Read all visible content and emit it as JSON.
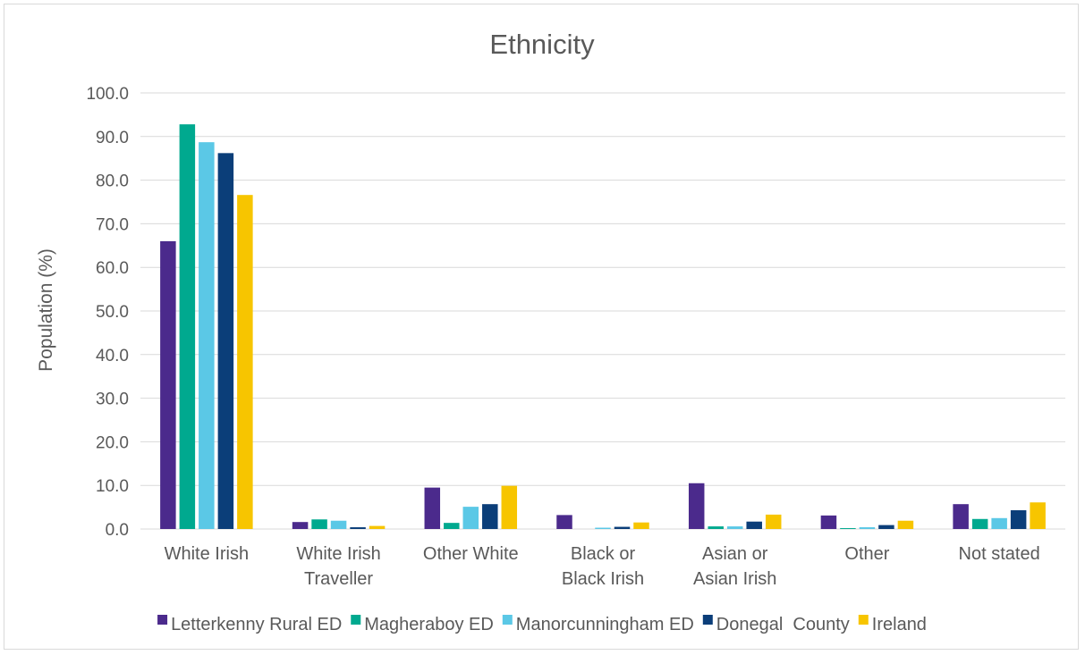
{
  "chart_data": {
    "type": "bar",
    "title": "Ethnicity",
    "ylabel": "Population (%)",
    "xlabel": "",
    "ylim": [
      0,
      100
    ],
    "yticks": [
      "0.0",
      "10.0",
      "20.0",
      "30.0",
      "40.0",
      "50.0",
      "60.0",
      "70.0",
      "80.0",
      "90.0",
      "100.0"
    ],
    "grid": true,
    "legend_position": "bottom",
    "categories": [
      [
        "White Irish"
      ],
      [
        "White Irish",
        "Traveller"
      ],
      [
        "Other White"
      ],
      [
        "Black or",
        "Black Irish"
      ],
      [
        "Asian or",
        "Asian Irish"
      ],
      [
        "Other"
      ],
      [
        "Not stated"
      ]
    ],
    "series": [
      {
        "name": "Letterkenny Rural ED",
        "color": "#4b2a8c",
        "values": [
          66.0,
          1.6,
          9.5,
          3.2,
          10.5,
          3.1,
          5.7
        ]
      },
      {
        "name": "Magheraboy ED",
        "color": "#00a98f",
        "values": [
          92.8,
          2.2,
          1.4,
          0.0,
          0.6,
          0.2,
          2.3
        ]
      },
      {
        "name": "Manorcunningham ED",
        "color": "#5bc8e6",
        "values": [
          88.7,
          1.9,
          5.1,
          0.3,
          0.6,
          0.4,
          2.5
        ]
      },
      {
        "name": "Donegal  County",
        "color": "#0b3e79",
        "values": [
          86.2,
          0.4,
          5.7,
          0.5,
          1.7,
          0.9,
          4.3
        ]
      },
      {
        "name": "Ireland",
        "color": "#f7c500",
        "values": [
          76.6,
          0.7,
          9.9,
          1.5,
          3.3,
          1.9,
          6.1
        ]
      }
    ]
  }
}
